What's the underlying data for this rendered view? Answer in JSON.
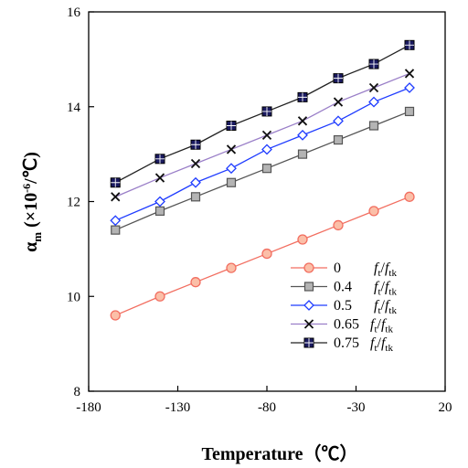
{
  "chart_data": {
    "type": "line",
    "xlabel": "Temperature（℃）",
    "ylabel_main": "α",
    "ylabel_sub": "m",
    "ylabel_unit_prefix": " (×10",
    "ylabel_unit_exp": "-6",
    "ylabel_unit_suffix": "/℃)",
    "xlim": [
      -180,
      20
    ],
    "ylim": [
      8,
      16
    ],
    "xticks": [
      -180,
      -130,
      -80,
      -30,
      20
    ],
    "yticks": [
      8,
      10,
      12,
      14,
      16
    ],
    "x": [
      -165,
      -140,
      -120,
      -100,
      -80,
      -60,
      -40,
      -20,
      0
    ],
    "grid": false,
    "legend_position": "bottom-right",
    "legend_ratio": {
      "f1": "f",
      "s1": "t",
      "slash": "/",
      "f2": "f",
      "s2": "tk"
    },
    "series": [
      {
        "name": "0",
        "color": "#f26e60",
        "fill": "#fbbfa8",
        "marker": "circle",
        "values": [
          9.6,
          10.0,
          10.3,
          10.6,
          10.9,
          11.2,
          11.5,
          11.8,
          12.1
        ]
      },
      {
        "name": "0.4",
        "color": "#555555",
        "fill": "#b4b4b4",
        "marker": "square",
        "values": [
          11.4,
          11.8,
          12.1,
          12.4,
          12.7,
          13.0,
          13.3,
          13.6,
          13.9
        ]
      },
      {
        "name": "0.5",
        "color": "#1f3cff",
        "fill": "#ffffff",
        "marker": "diamond",
        "values": [
          11.6,
          12.0,
          12.4,
          12.7,
          13.1,
          13.4,
          13.7,
          14.1,
          14.4
        ]
      },
      {
        "name": "0.65",
        "color": "#9a7fc8",
        "fill": "none",
        "marker": "x",
        "values": [
          12.1,
          12.5,
          12.8,
          13.1,
          13.4,
          13.7,
          14.1,
          14.4,
          14.7
        ]
      },
      {
        "name": "0.75",
        "color": "#222222",
        "fill": "#1a1a60",
        "marker": "square-grid",
        "values": [
          12.4,
          12.9,
          13.2,
          13.6,
          13.9,
          14.2,
          14.6,
          14.9,
          15.3
        ]
      }
    ]
  }
}
